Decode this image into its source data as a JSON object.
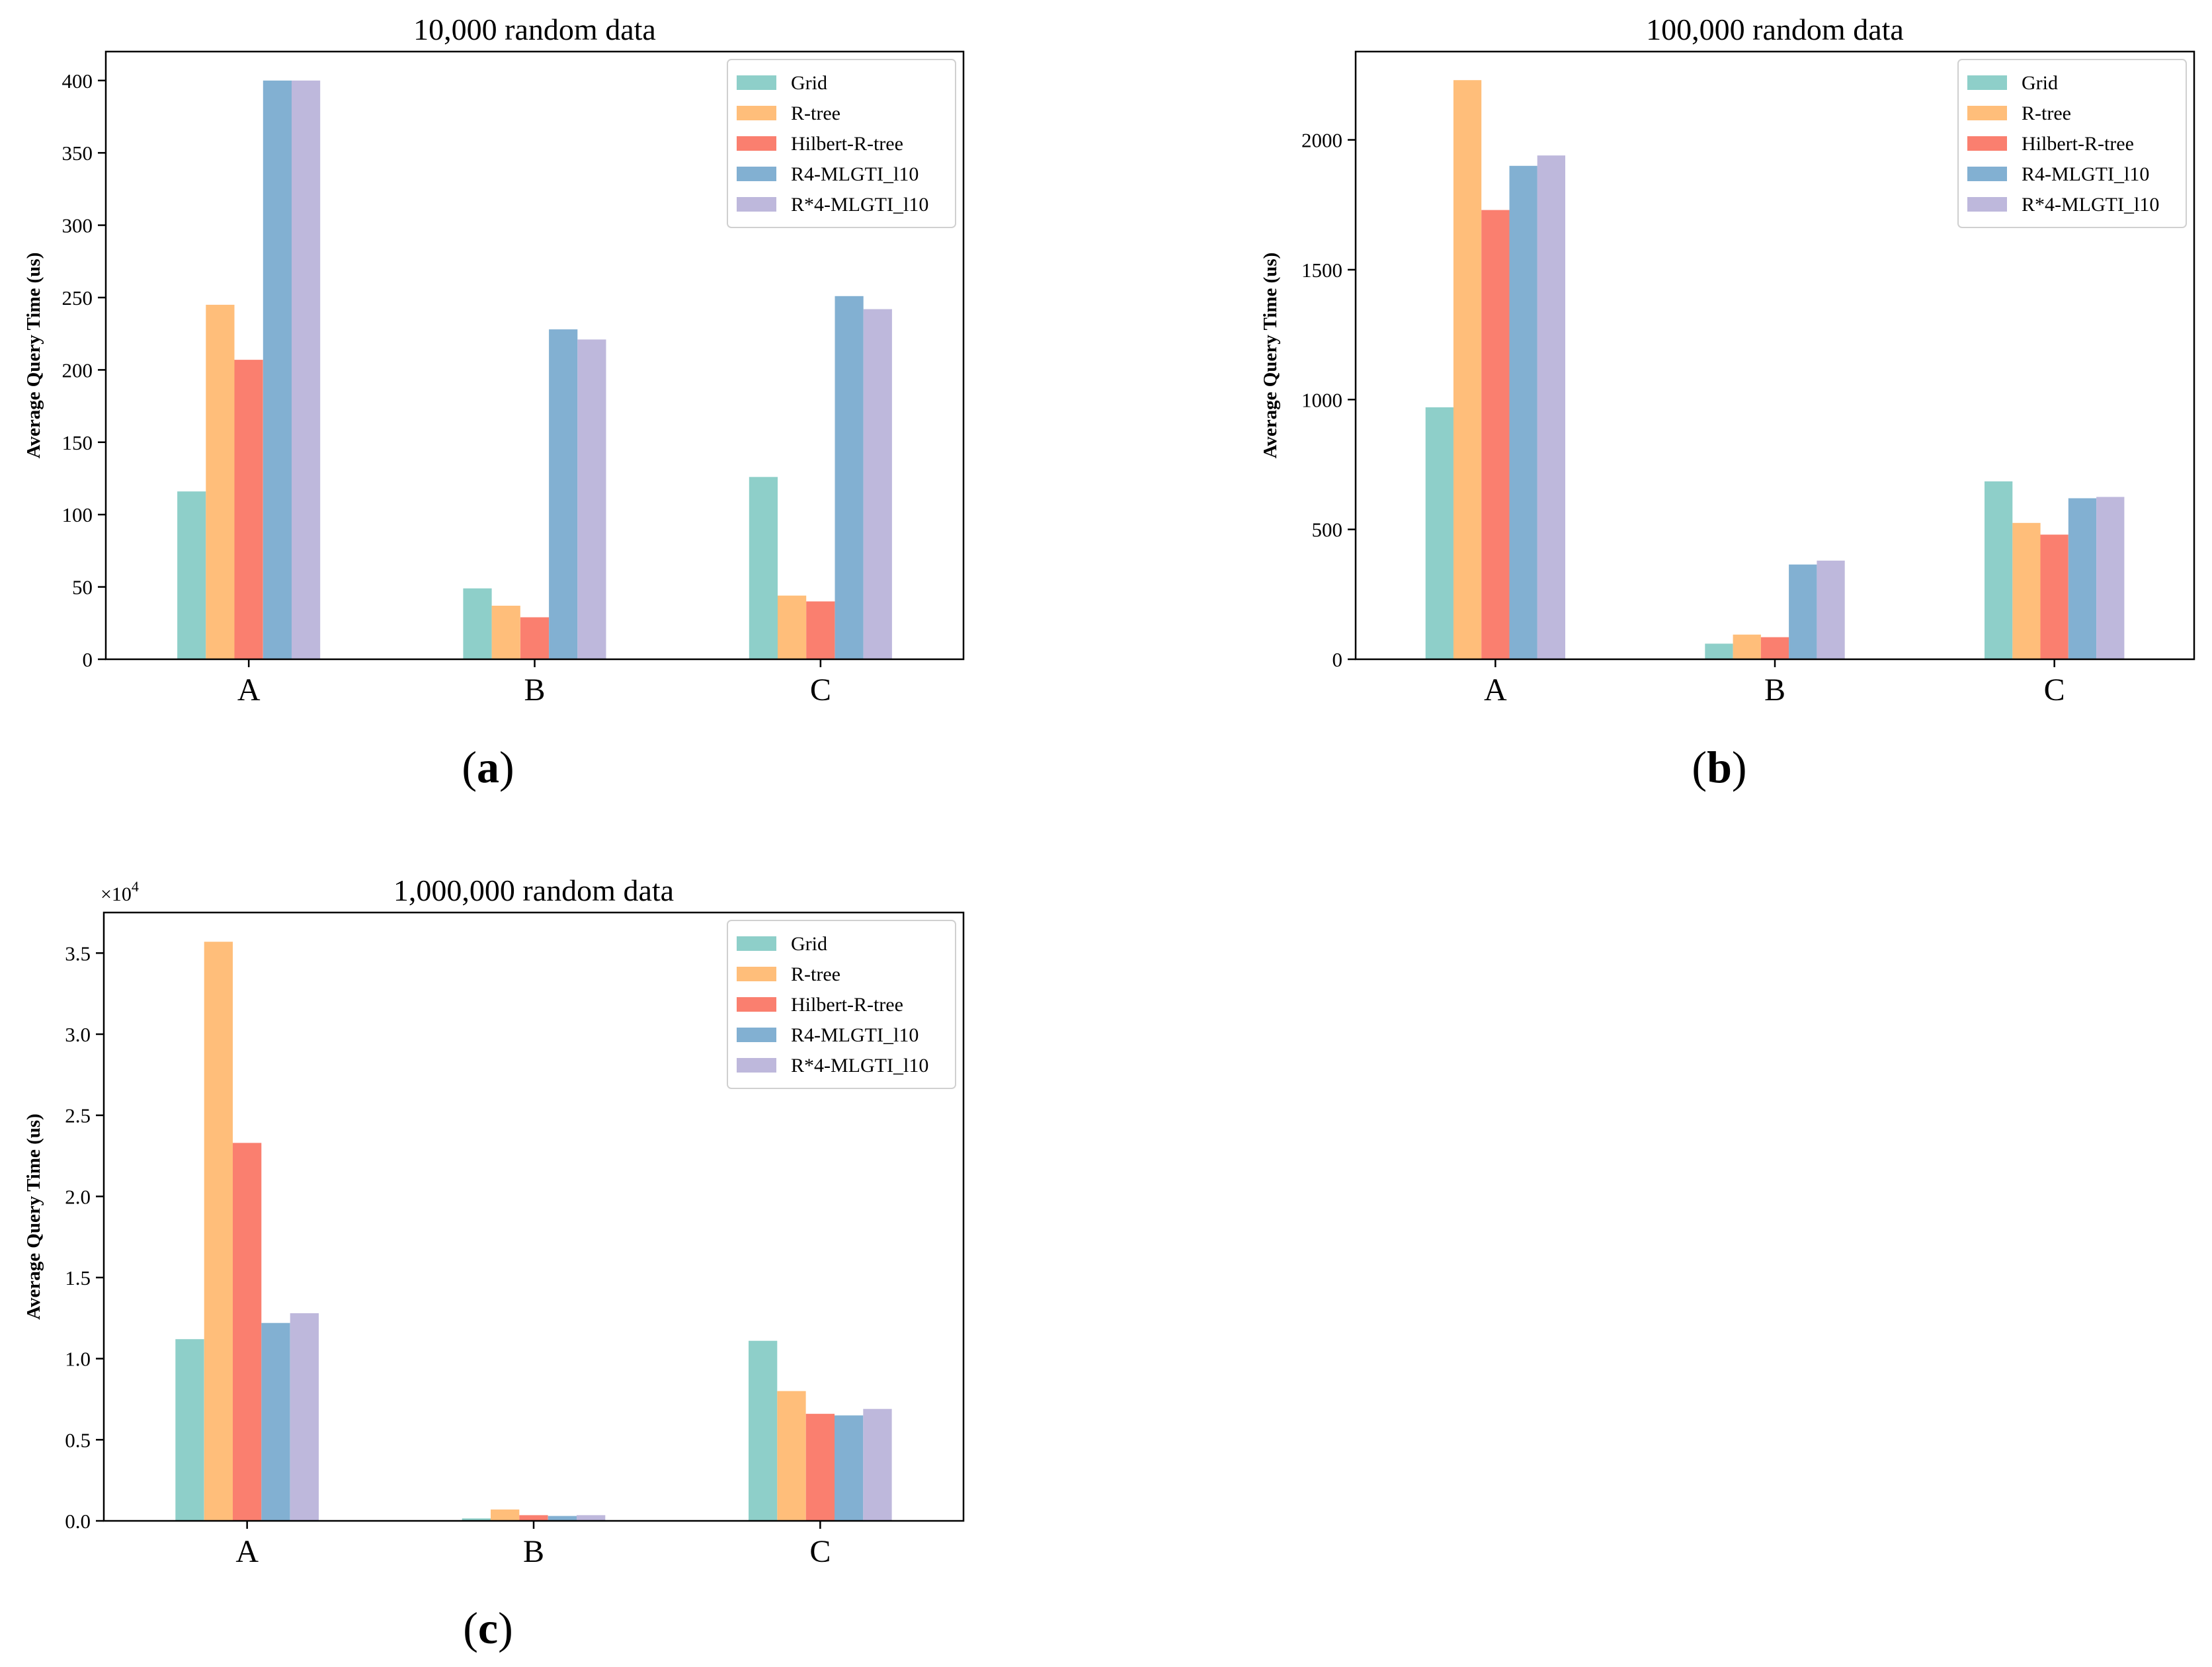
{
  "figure": {
    "series_colors": {
      "Grid": "#8ecfc9",
      "R-tree": "#ffbe7a",
      "Hilbert-R-tree": "#fa7f6f",
      "R4-MLGTI_l10": "#82b0d2",
      "R*4-MLGTI_l10": "#beb8dc"
    },
    "panels": [
      {
        "paren_open": "(",
        "letter": "a",
        "paren_close": ")"
      },
      {
        "paren_open": "(",
        "letter": "b",
        "paren_close": ")"
      },
      {
        "paren_open": "(",
        "letter": "c",
        "paren_close": ")"
      }
    ]
  },
  "chart_data": [
    {
      "type": "bar",
      "title": "10,000 random data",
      "xlabel": "",
      "ylabel": "Average Query Time (us)",
      "categories": [
        "A",
        "B",
        "C"
      ],
      "ylim": [
        0,
        420
      ],
      "yticks": [
        0,
        50,
        100,
        150,
        200,
        250,
        300,
        350,
        400
      ],
      "ytick_labels": [
        "0",
        "50",
        "100",
        "150",
        "200",
        "250",
        "300",
        "350",
        "400"
      ],
      "offset_label": "",
      "legend_position": "top-right",
      "series": [
        {
          "name": "Grid",
          "values": [
            116,
            49,
            126
          ]
        },
        {
          "name": "R-tree",
          "values": [
            245,
            37,
            44
          ]
        },
        {
          "name": "Hilbert-R-tree",
          "values": [
            207,
            29,
            40
          ]
        },
        {
          "name": "R4-MLGTI_l10",
          "values": [
            400,
            228,
            251
          ]
        },
        {
          "name": "R*4-MLGTI_l10",
          "values": [
            400,
            221,
            242
          ]
        }
      ]
    },
    {
      "type": "bar",
      "title": "100,000 random data",
      "xlabel": "",
      "ylabel": "Average Query Time (us)",
      "categories": [
        "A",
        "B",
        "C"
      ],
      "ylim": [
        0,
        2340
      ],
      "yticks": [
        0,
        500,
        1000,
        1500,
        2000
      ],
      "ytick_labels": [
        "0",
        "500",
        "1000",
        "1500",
        "2000"
      ],
      "offset_label": "",
      "legend_position": "top-right",
      "series": [
        {
          "name": "Grid",
          "values": [
            970,
            60,
            685
          ]
        },
        {
          "name": "R-tree",
          "values": [
            2230,
            95,
            525
          ]
        },
        {
          "name": "Hilbert-R-tree",
          "values": [
            1730,
            85,
            480
          ]
        },
        {
          "name": "R4-MLGTI_l10",
          "values": [
            1900,
            365,
            620
          ]
        },
        {
          "name": "R*4-MLGTI_l10",
          "values": [
            1940,
            380,
            625
          ]
        }
      ]
    },
    {
      "type": "bar",
      "title": "1,000,000 random data",
      "xlabel": "",
      "ylabel": "Average Query Time (us)",
      "categories": [
        "A",
        "B",
        "C"
      ],
      "ylim": [
        0,
        37500
      ],
      "yticks": [
        0,
        5000,
        10000,
        15000,
        20000,
        25000,
        30000,
        35000
      ],
      "ytick_labels": [
        "0.0",
        "0.5",
        "1.0",
        "1.5",
        "2.0",
        "2.5",
        "3.0",
        "3.5"
      ],
      "offset_label": "×10",
      "offset_exponent": "4",
      "legend_position": "top-right",
      "series": [
        {
          "name": "Grid",
          "values": [
            11200,
            150,
            11100
          ]
        },
        {
          "name": "R-tree",
          "values": [
            35700,
            700,
            8000
          ]
        },
        {
          "name": "Hilbert-R-tree",
          "values": [
            23300,
            350,
            6600
          ]
        },
        {
          "name": "R4-MLGTI_l10",
          "values": [
            12200,
            300,
            6500
          ]
        },
        {
          "name": "R*4-MLGTI_l10",
          "values": [
            12800,
            350,
            6900
          ]
        }
      ]
    }
  ]
}
